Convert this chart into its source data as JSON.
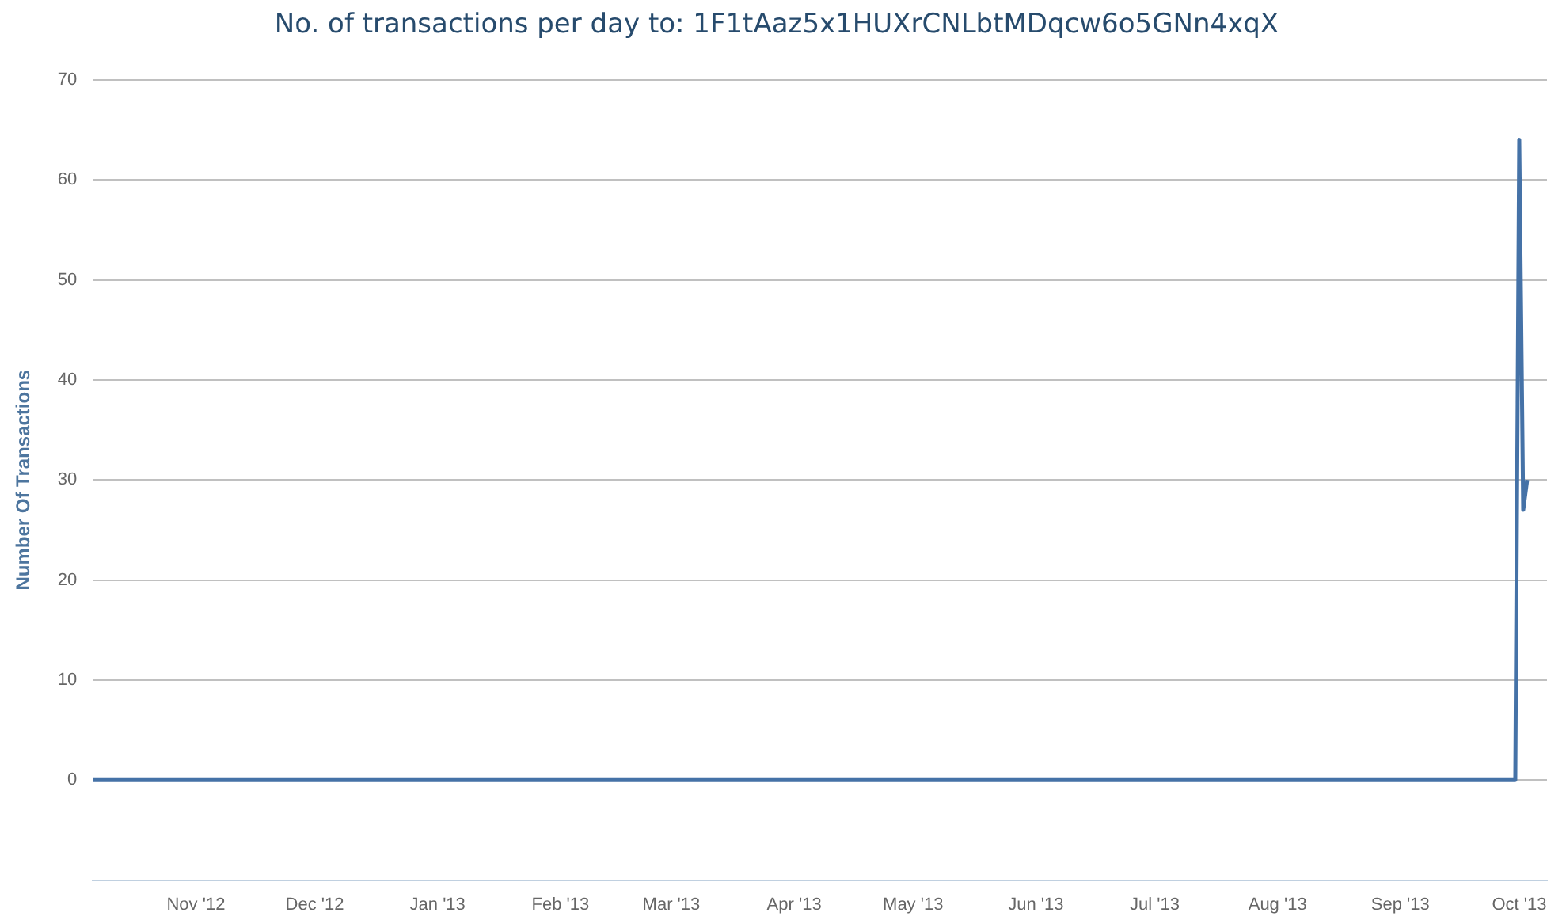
{
  "chart_data": {
    "type": "line",
    "title": "No. of transactions per day to: 1F1tAaz5x1HUXrCNLbtMDqcw6o5GNn4xqX",
    "ylabel": "Number Of Transactions",
    "x": [
      "2012-10-06",
      "2013-09-30",
      "2013-10-01",
      "2013-10-02",
      "2013-10-03"
    ],
    "series": [
      {
        "color": "#4572a7",
        "values": [
          0,
          0,
          64,
          27,
          30
        ]
      }
    ],
    "xlim": [
      "2012-10-06",
      "2013-10-08"
    ],
    "xticks": [
      {
        "value": "2012-11-01",
        "label": "Nov '12"
      },
      {
        "value": "2012-12-01",
        "label": "Dec '12"
      },
      {
        "value": "2013-01-01",
        "label": "Jan '13"
      },
      {
        "value": "2013-02-01",
        "label": "Feb '13"
      },
      {
        "value": "2013-03-01",
        "label": "Mar '13"
      },
      {
        "value": "2013-04-01",
        "label": "Apr '13"
      },
      {
        "value": "2013-05-01",
        "label": "May '13"
      },
      {
        "value": "2013-06-01",
        "label": "Jun '13"
      },
      {
        "value": "2013-07-01",
        "label": "Jul '13"
      },
      {
        "value": "2013-08-01",
        "label": "Aug '13"
      },
      {
        "value": "2013-09-01",
        "label": "Sep '13"
      },
      {
        "value": "2013-10-01",
        "label": "Oct '13"
      }
    ],
    "ylim": [
      -10,
      70
    ],
    "yticks": [
      0,
      10,
      20,
      30,
      40,
      50,
      60,
      70
    ],
    "grid": "y",
    "legend": false,
    "marker": "none",
    "line_style": "solid"
  }
}
